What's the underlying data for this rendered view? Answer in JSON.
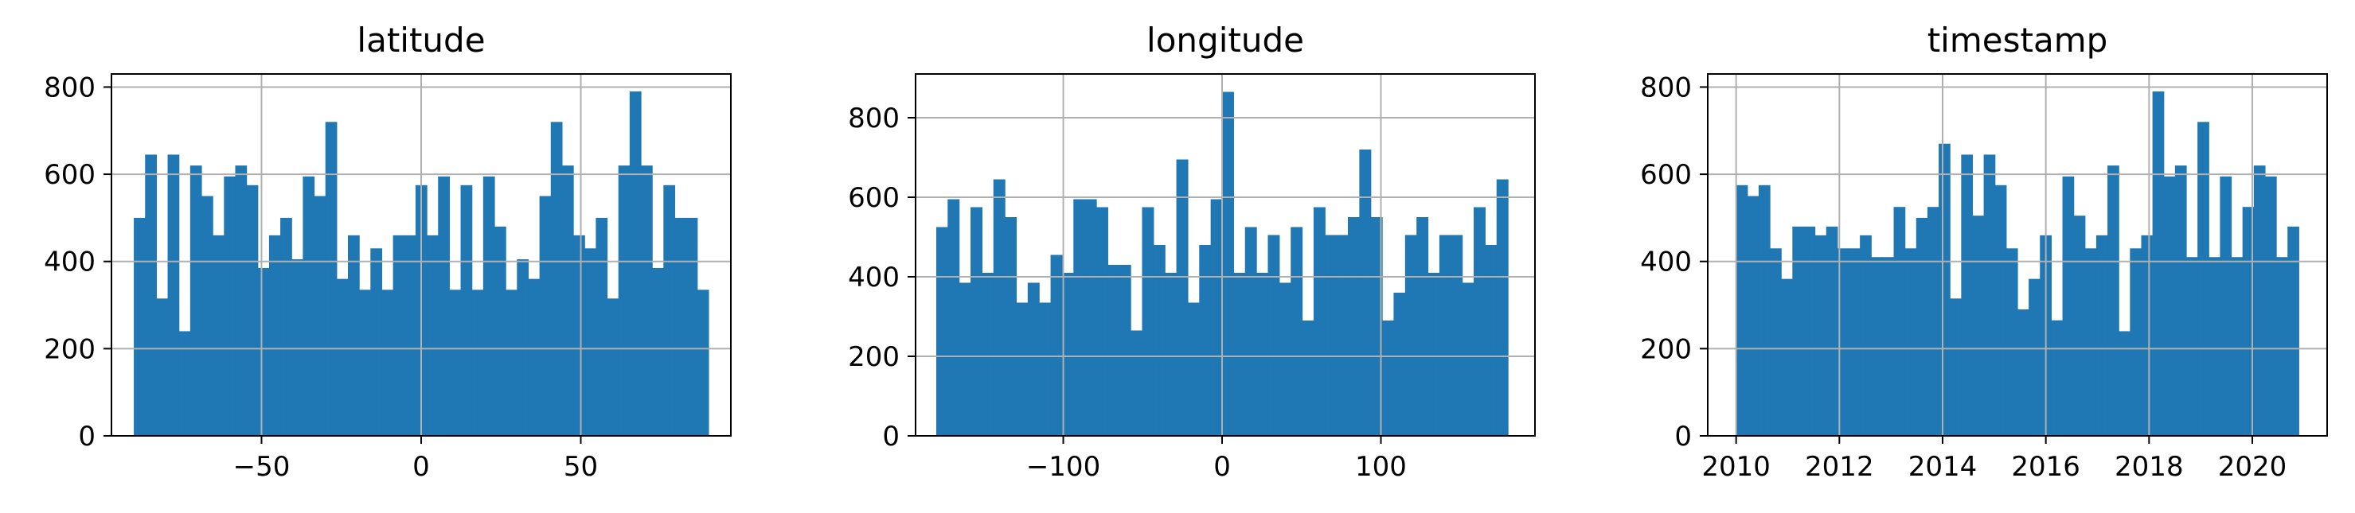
{
  "chart_data": [
    {
      "type": "bar",
      "title": "latitude",
      "xlabel": "",
      "ylabel": "",
      "xlim": [
        -97,
        97
      ],
      "ylim": [
        0,
        830
      ],
      "bin_range": [
        -90,
        90
      ],
      "xticks": [
        -50,
        0,
        50
      ],
      "xtick_labels": [
        "−50",
        "0",
        "50"
      ],
      "yticks": [
        0,
        200,
        400,
        600,
        800
      ],
      "ytick_labels": [
        "0",
        "200",
        "400",
        "600",
        "800"
      ],
      "grid": true,
      "color": "#1f77b4",
      "values": [
        500,
        645,
        315,
        645,
        240,
        620,
        550,
        460,
        595,
        620,
        575,
        385,
        460,
        500,
        405,
        595,
        550,
        720,
        360,
        460,
        335,
        430,
        335,
        460,
        460,
        575,
        460,
        595,
        335,
        575,
        335,
        595,
        480,
        335,
        405,
        360,
        550,
        720,
        620,
        460,
        430,
        500,
        315,
        620,
        790,
        620,
        385,
        575,
        500,
        500,
        335
      ]
    },
    {
      "type": "bar",
      "title": "longitude",
      "xlabel": "",
      "ylabel": "",
      "xlim": [
        -193,
        197
      ],
      "ylim": [
        0,
        910
      ],
      "bin_range": [
        -180,
        180
      ],
      "xticks": [
        -100,
        0,
        100
      ],
      "xtick_labels": [
        "−100",
        "0",
        "100"
      ],
      "yticks": [
        0,
        200,
        400,
        600,
        800
      ],
      "ytick_labels": [
        "0",
        "200",
        "400",
        "600",
        "800"
      ],
      "grid": true,
      "color": "#1f77b4",
      "values": [
        525,
        595,
        385,
        575,
        410,
        645,
        550,
        335,
        385,
        335,
        455,
        410,
        595,
        595,
        575,
        430,
        430,
        265,
        575,
        480,
        410,
        695,
        335,
        480,
        595,
        865,
        410,
        525,
        410,
        505,
        385,
        525,
        290,
        575,
        505,
        505,
        550,
        720,
        550,
        290,
        360,
        505,
        550,
        410,
        505,
        505,
        385,
        575,
        480,
        645
      ]
    },
    {
      "type": "bar",
      "title": "timestamp",
      "xlabel": "",
      "ylabel": "",
      "xlim": [
        2009.45,
        2021.45
      ],
      "ylim": [
        0,
        830
      ],
      "bin_range": [
        2010,
        2020.9
      ],
      "xticks": [
        2010,
        2012,
        2014,
        2016,
        2018,
        2020
      ],
      "xtick_labels": [
        "2010",
        "2012",
        "2014",
        "2016",
        "2018",
        "2020"
      ],
      "yticks": [
        0,
        200,
        400,
        600,
        800
      ],
      "ytick_labels": [
        "0",
        "200",
        "400",
        "600",
        "800"
      ],
      "grid": true,
      "color": "#1f77b4",
      "values": [
        575,
        550,
        575,
        430,
        360,
        480,
        480,
        460,
        480,
        430,
        430,
        460,
        410,
        410,
        525,
        430,
        500,
        525,
        670,
        315,
        645,
        505,
        645,
        575,
        430,
        290,
        360,
        460,
        265,
        595,
        505,
        430,
        460,
        620,
        240,
        430,
        460,
        790,
        595,
        620,
        410,
        720,
        410,
        595,
        410,
        525,
        620,
        595,
        410,
        480
      ]
    }
  ]
}
